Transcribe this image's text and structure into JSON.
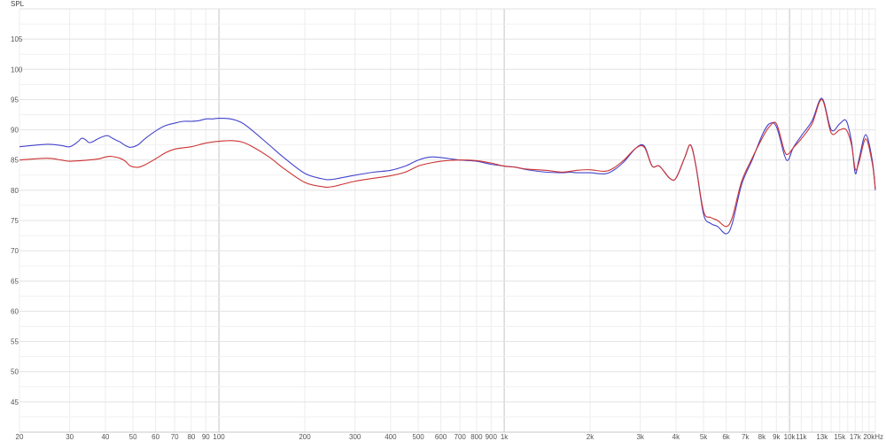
{
  "chart_data": {
    "type": "line",
    "title": "",
    "ylabel": "SPL",
    "xlabel": "",
    "xscale": "log",
    "xlim": [
      20,
      20000
    ],
    "ylim": [
      40,
      110
    ],
    "grid": true,
    "legend": "none",
    "y_ticks": [
      45,
      50,
      55,
      60,
      65,
      70,
      75,
      80,
      85,
      90,
      95,
      100,
      105
    ],
    "x_ticks": [
      {
        "value": 20,
        "label": "20"
      },
      {
        "value": 30,
        "label": "30"
      },
      {
        "value": 40,
        "label": "40"
      },
      {
        "value": 50,
        "label": "50"
      },
      {
        "value": 60,
        "label": "60"
      },
      {
        "value": 70,
        "label": "70"
      },
      {
        "value": 80,
        "label": "80"
      },
      {
        "value": 90,
        "label": "90"
      },
      {
        "value": 100,
        "label": "100"
      },
      {
        "value": 200,
        "label": "200"
      },
      {
        "value": 300,
        "label": "300"
      },
      {
        "value": 400,
        "label": "400"
      },
      {
        "value": 500,
        "label": "500"
      },
      {
        "value": 600,
        "label": "600"
      },
      {
        "value": 700,
        "label": "700"
      },
      {
        "value": 800,
        "label": "800"
      },
      {
        "value": 900,
        "label": "900"
      },
      {
        "value": 1000,
        "label": "1k"
      },
      {
        "value": 2000,
        "label": "2k"
      },
      {
        "value": 3000,
        "label": "3k"
      },
      {
        "value": 4000,
        "label": "4k"
      },
      {
        "value": 5000,
        "label": "5k"
      },
      {
        "value": 6000,
        "label": "6k"
      },
      {
        "value": 7000,
        "label": "7k"
      },
      {
        "value": 8000,
        "label": "8k"
      },
      {
        "value": 9000,
        "label": "9k"
      },
      {
        "value": 10000,
        "label": "10k"
      },
      {
        "value": 11000,
        "label": "11k",
        "faded": true
      },
      {
        "value": 13000,
        "label": "13k",
        "faded": true
      },
      {
        "value": 15000,
        "label": "15k",
        "faded": true
      },
      {
        "value": 17000,
        "label": "17k",
        "faded": true
      },
      {
        "value": 20000,
        "label": "20kHz"
      }
    ],
    "series": [
      {
        "color": "#4444cc",
        "points": [
          [
            20,
            87.2
          ],
          [
            25,
            87.6
          ],
          [
            28,
            87.4
          ],
          [
            30,
            87.2
          ],
          [
            32,
            88.0
          ],
          [
            33,
            88.6
          ],
          [
            34,
            88.4
          ],
          [
            35,
            87.9
          ],
          [
            36,
            88.0
          ],
          [
            38,
            88.6
          ],
          [
            40,
            89.0
          ],
          [
            41,
            89.0
          ],
          [
            42,
            88.7
          ],
          [
            44,
            88.2
          ],
          [
            45,
            88.0
          ],
          [
            47,
            87.4
          ],
          [
            49,
            87.1
          ],
          [
            52,
            87.5
          ],
          [
            55,
            88.5
          ],
          [
            60,
            89.8
          ],
          [
            65,
            90.7
          ],
          [
            70,
            91.1
          ],
          [
            75,
            91.4
          ],
          [
            80,
            91.4
          ],
          [
            85,
            91.5
          ],
          [
            90,
            91.8
          ],
          [
            95,
            91.8
          ],
          [
            100,
            91.9
          ],
          [
            110,
            91.8
          ],
          [
            120,
            91.2
          ],
          [
            130,
            90.0
          ],
          [
            150,
            87.5
          ],
          [
            170,
            85.3
          ],
          [
            200,
            82.8
          ],
          [
            230,
            81.9
          ],
          [
            250,
            81.8
          ],
          [
            300,
            82.5
          ],
          [
            350,
            83.0
          ],
          [
            400,
            83.3
          ],
          [
            450,
            84.0
          ],
          [
            500,
            85.0
          ],
          [
            550,
            85.5
          ],
          [
            600,
            85.4
          ],
          [
            700,
            85.0
          ],
          [
            800,
            84.8
          ],
          [
            900,
            84.3
          ],
          [
            1000,
            84.0
          ],
          [
            1100,
            83.8
          ],
          [
            1200,
            83.4
          ],
          [
            1400,
            83.0
          ],
          [
            1600,
            82.9
          ],
          [
            1700,
            83.0
          ],
          [
            1800,
            82.9
          ],
          [
            2000,
            82.9
          ],
          [
            2300,
            82.8
          ],
          [
            2600,
            84.5
          ],
          [
            2900,
            87.0
          ],
          [
            3100,
            87.3
          ],
          [
            3300,
            84.0
          ],
          [
            3500,
            84.0
          ],
          [
            3800,
            82.0
          ],
          [
            4000,
            82.0
          ],
          [
            4300,
            85.5
          ],
          [
            4500,
            87.5
          ],
          [
            4700,
            84.0
          ],
          [
            5000,
            76.0
          ],
          [
            5300,
            74.5
          ],
          [
            5600,
            74.0
          ],
          [
            6000,
            72.8
          ],
          [
            6300,
            74.5
          ],
          [
            6800,
            81.0
          ],
          [
            7400,
            85.0
          ],
          [
            8000,
            89.0
          ],
          [
            8500,
            91.0
          ],
          [
            9000,
            90.5
          ],
          [
            9600,
            85.8
          ],
          [
            9900,
            85.0
          ],
          [
            10300,
            87.0
          ],
          [
            11000,
            89.0
          ],
          [
            12000,
            91.5
          ],
          [
            13000,
            95.2
          ],
          [
            14000,
            90.0
          ],
          [
            15000,
            91.0
          ],
          [
            15800,
            91.5
          ],
          [
            16500,
            88.0
          ],
          [
            17000,
            82.8
          ],
          [
            17500,
            85.0
          ],
          [
            18500,
            89.2
          ],
          [
            19500,
            85.0
          ],
          [
            20000,
            80.0
          ]
        ]
      },
      {
        "color": "#cc3333",
        "points": [
          [
            20,
            85.0
          ],
          [
            25,
            85.3
          ],
          [
            28,
            85.0
          ],
          [
            30,
            84.8
          ],
          [
            35,
            85.0
          ],
          [
            38,
            85.2
          ],
          [
            40,
            85.5
          ],
          [
            42,
            85.6
          ],
          [
            45,
            85.3
          ],
          [
            47,
            84.8
          ],
          [
            49,
            84.0
          ],
          [
            52,
            83.8
          ],
          [
            55,
            84.2
          ],
          [
            60,
            85.2
          ],
          [
            65,
            86.2
          ],
          [
            70,
            86.8
          ],
          [
            80,
            87.2
          ],
          [
            90,
            87.8
          ],
          [
            100,
            88.1
          ],
          [
            110,
            88.2
          ],
          [
            120,
            88.0
          ],
          [
            130,
            87.3
          ],
          [
            150,
            85.5
          ],
          [
            170,
            83.5
          ],
          [
            200,
            81.3
          ],
          [
            230,
            80.6
          ],
          [
            250,
            80.6
          ],
          [
            300,
            81.5
          ],
          [
            350,
            82.0
          ],
          [
            400,
            82.4
          ],
          [
            450,
            83.0
          ],
          [
            500,
            84.0
          ],
          [
            550,
            84.5
          ],
          [
            600,
            84.8
          ],
          [
            700,
            85.0
          ],
          [
            800,
            84.9
          ],
          [
            900,
            84.5
          ],
          [
            1000,
            84.0
          ],
          [
            1100,
            83.8
          ],
          [
            1200,
            83.5
          ],
          [
            1400,
            83.3
          ],
          [
            1600,
            83.0
          ],
          [
            1800,
            83.3
          ],
          [
            2000,
            83.4
          ],
          [
            2300,
            83.2
          ],
          [
            2600,
            84.8
          ],
          [
            2900,
            87.0
          ],
          [
            3100,
            87.1
          ],
          [
            3300,
            84.0
          ],
          [
            3500,
            84.0
          ],
          [
            3800,
            82.0
          ],
          [
            4000,
            82.0
          ],
          [
            4300,
            85.5
          ],
          [
            4500,
            87.5
          ],
          [
            4700,
            84.0
          ],
          [
            5000,
            76.5
          ],
          [
            5300,
            75.5
          ],
          [
            5600,
            75.0
          ],
          [
            6000,
            74.0
          ],
          [
            6300,
            75.5
          ],
          [
            6800,
            81.5
          ],
          [
            7400,
            85.3
          ],
          [
            8000,
            88.5
          ],
          [
            8500,
            90.5
          ],
          [
            9000,
            91.0
          ],
          [
            9600,
            86.5
          ],
          [
            9900,
            86.0
          ],
          [
            10300,
            87.0
          ],
          [
            11000,
            88.5
          ],
          [
            12000,
            91.0
          ],
          [
            13000,
            95.0
          ],
          [
            14000,
            89.5
          ],
          [
            15000,
            90.0
          ],
          [
            15800,
            90.0
          ],
          [
            16500,
            87.5
          ],
          [
            17000,
            83.5
          ],
          [
            17500,
            84.5
          ],
          [
            18500,
            88.5
          ],
          [
            19500,
            84.5
          ],
          [
            20000,
            80.2
          ]
        ]
      }
    ]
  }
}
